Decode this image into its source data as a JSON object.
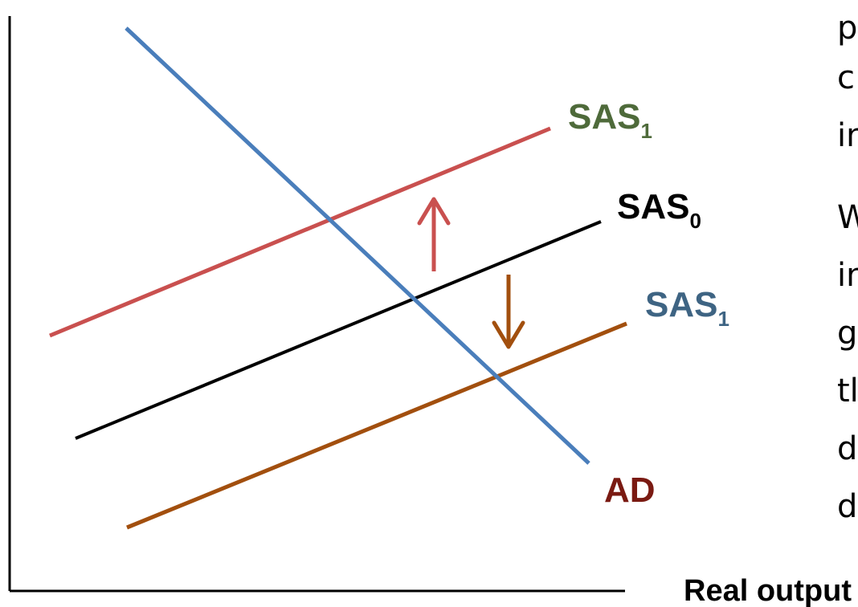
{
  "curves": {
    "sas1_upper": {
      "name": "SAS",
      "sub": "1",
      "line_color": "#C9504F",
      "label_color": "#4E6A3A"
    },
    "sas0": {
      "name": "SAS",
      "sub": "0",
      "line_color": "#000000",
      "label_color": "#000000"
    },
    "sas1_lower": {
      "name": "SAS",
      "sub": "1",
      "line_color": "#A24F0E",
      "label_color": "#3E6483"
    },
    "ad": {
      "name": "AD",
      "line_color": "#4A7EBB",
      "label_color": "#7A1A12"
    }
  },
  "arrows": {
    "up": {
      "color": "#C9504F"
    },
    "down": {
      "color": "#A24F0E"
    }
  },
  "axes": {
    "x_label": "Real output",
    "color": "#000000"
  },
  "side_text": {
    "fragments": [
      "p",
      "c",
      "in",
      "W",
      "in",
      "g",
      "tl",
      "d",
      "d"
    ]
  }
}
